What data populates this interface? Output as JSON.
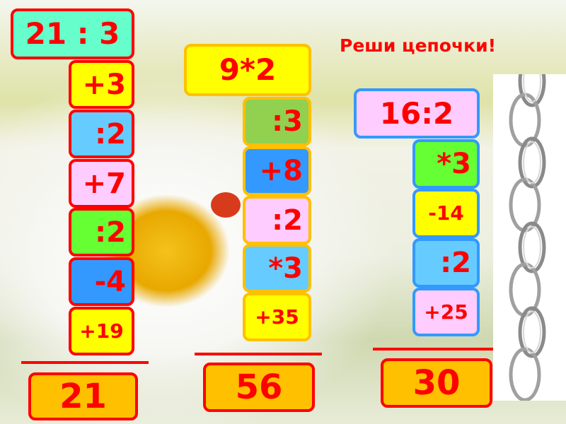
{
  "title": "Реши цепочки!",
  "chains": [
    {
      "start": "21 : 3",
      "steps": [
        "+3",
        ":2",
        "+7",
        ":2",
        "-4",
        "+19"
      ],
      "answer": "21",
      "border_color": "#ff0000"
    },
    {
      "start": "9*2",
      "steps": [
        ":3",
        "+8",
        ":2",
        "*3",
        "+35"
      ],
      "answer": "56",
      "border_color": "#ffc000"
    },
    {
      "start": "16:2",
      "steps": [
        "*3",
        "-14",
        ":2",
        "+25"
      ],
      "answer": "30",
      "border_color": "#3399ff"
    }
  ],
  "colors": {
    "text": "#ff0000",
    "answer_fill": "#ffc000"
  }
}
